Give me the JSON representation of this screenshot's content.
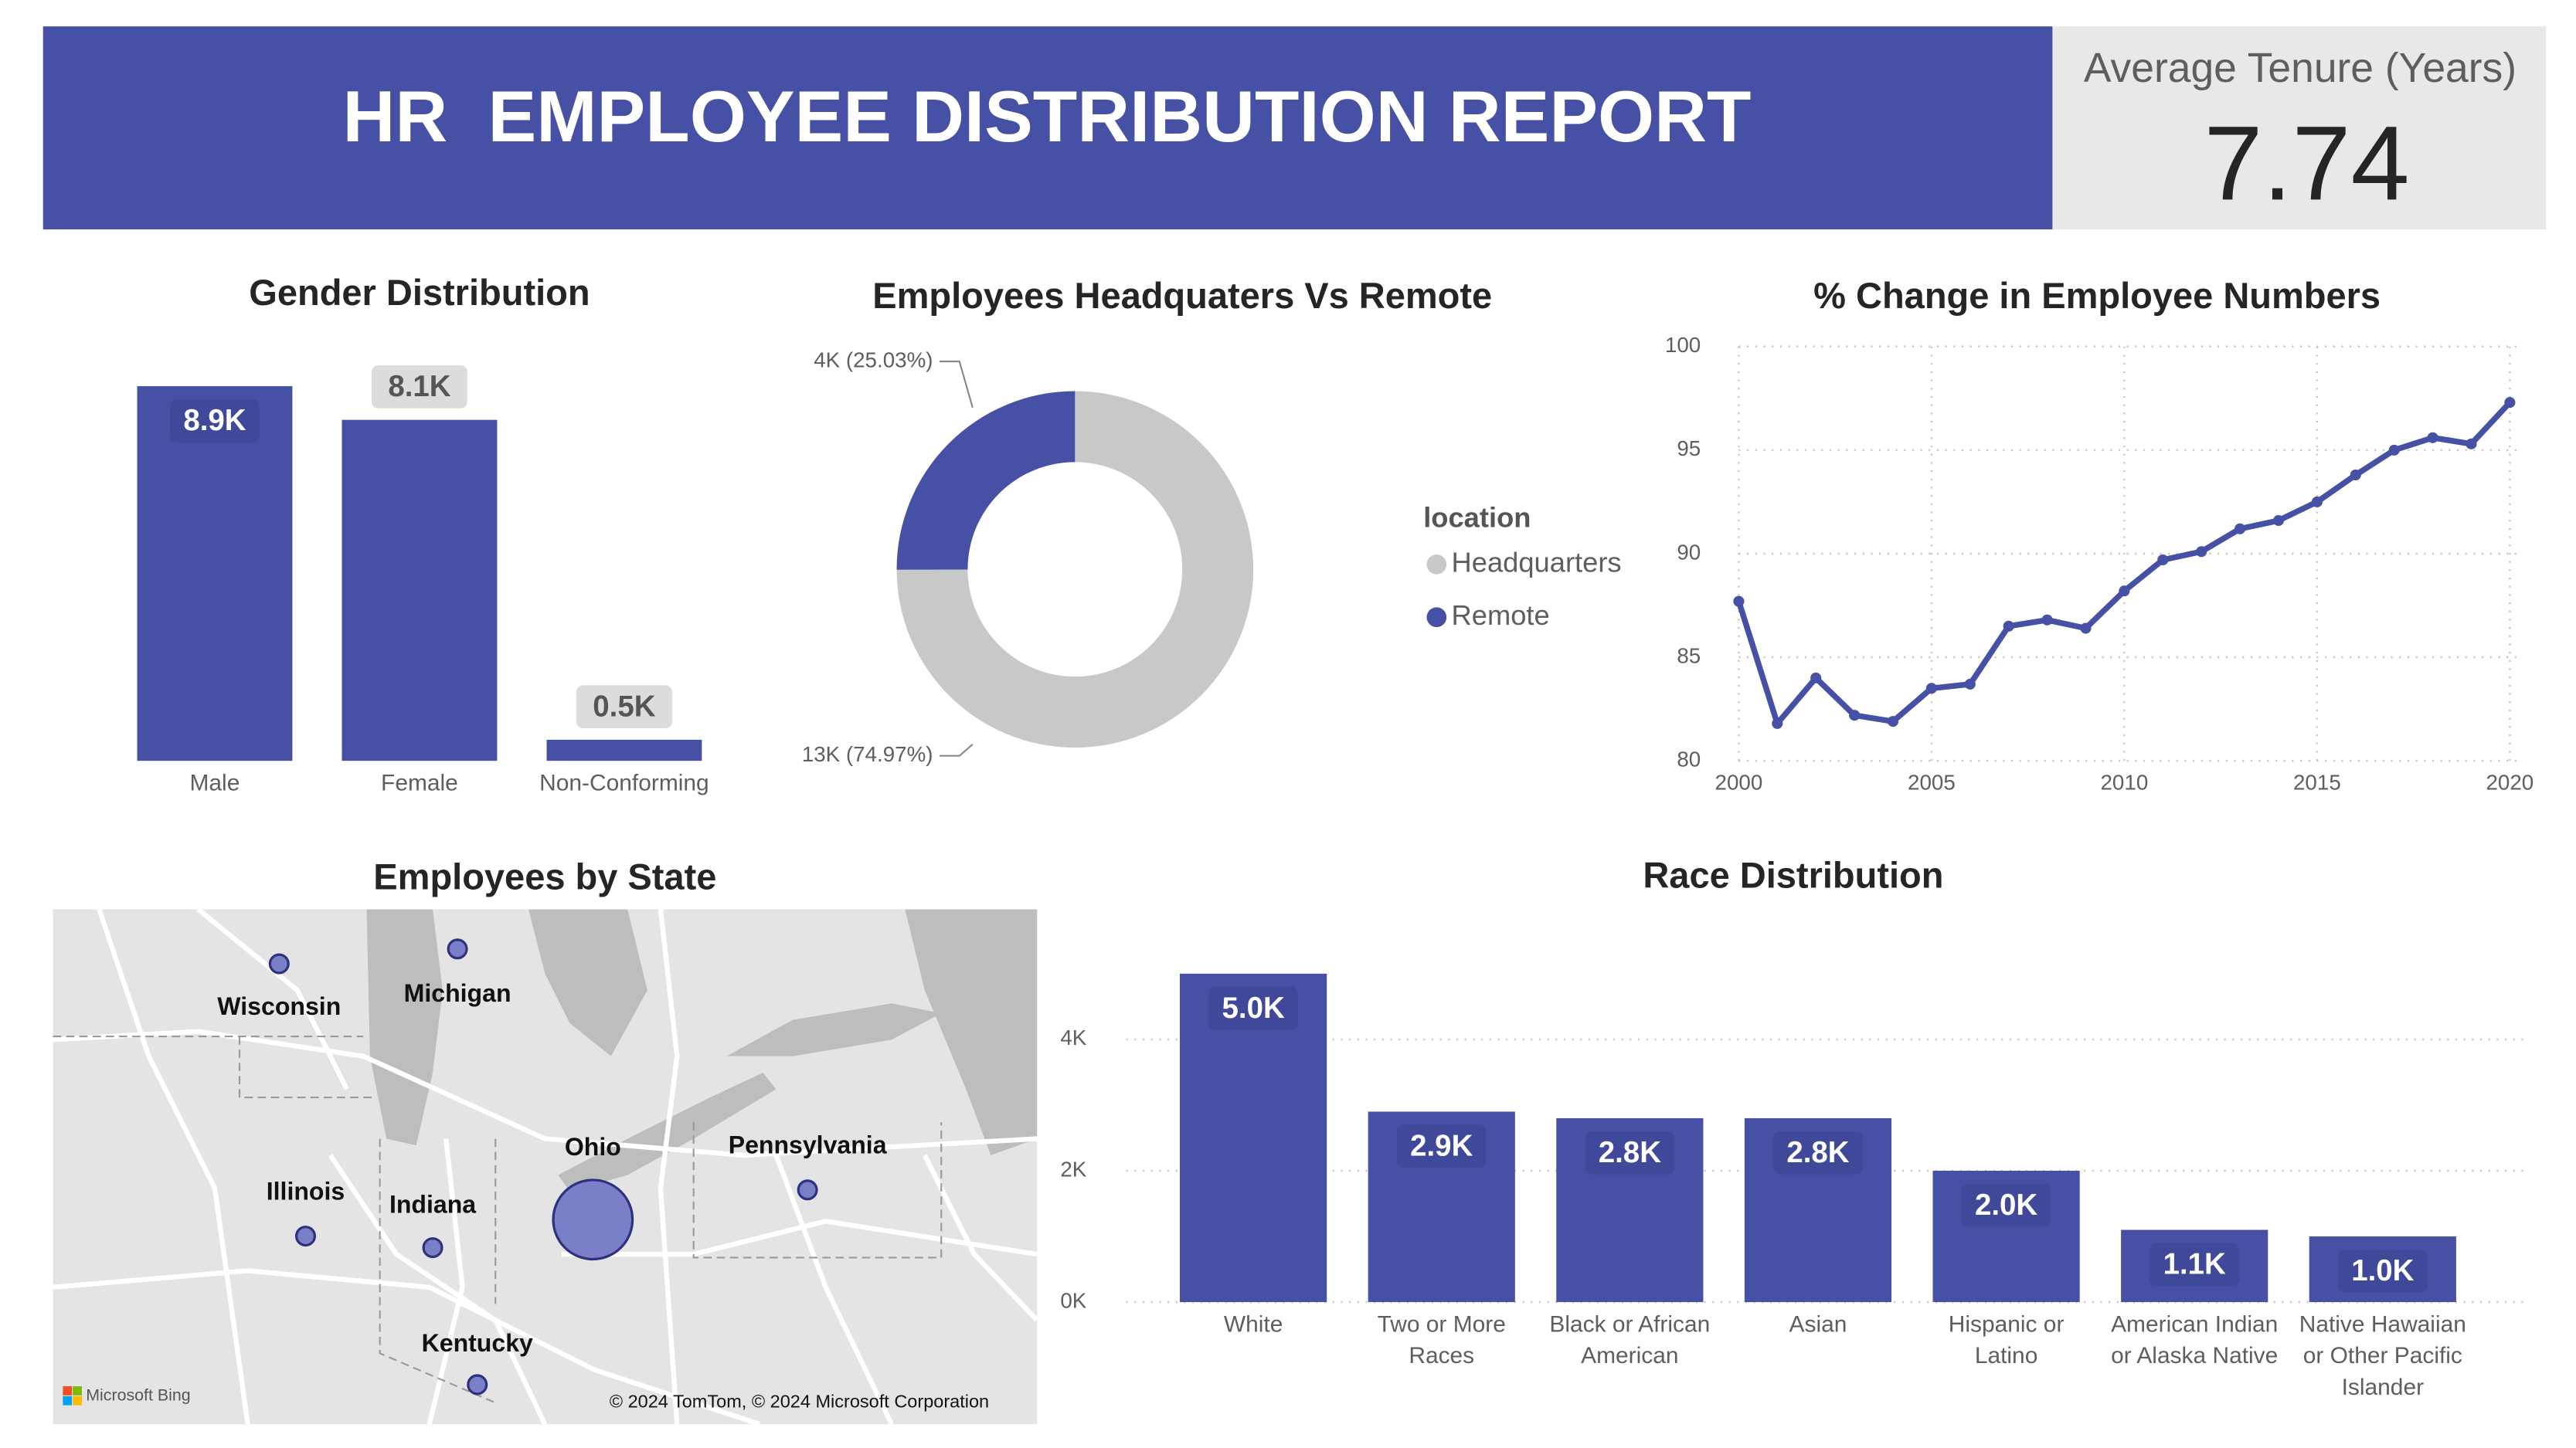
{
  "header": {
    "title": "HR  EMPLOYEE DISTRIBUTION REPORT"
  },
  "kpi": {
    "label": "Average Tenure (Years)",
    "value": 7.74
  },
  "chart_data": [
    {
      "type": "bar",
      "title": "Gender Distribution",
      "categories": [
        "Male",
        "Female",
        "Non-Conforming"
      ],
      "values": [
        8900,
        8100,
        500
      ],
      "value_labels": [
        "8.9K",
        "8.1K",
        "0.5K"
      ],
      "color": "#4650a4"
    },
    {
      "type": "pie",
      "title": "Employees Headquaters Vs Remote",
      "donut": true,
      "categories": [
        "Headquarters",
        "Remote"
      ],
      "values": [
        74.97,
        25.03
      ],
      "value_labels": [
        "13K (74.97%)",
        "4K (25.03%)"
      ],
      "colors": [
        "#c8c8c8",
        "#4650a4"
      ],
      "legend_title": "location"
    },
    {
      "type": "line",
      "title": "% Change in Employee Numbers",
      "x": [
        2000,
        2001,
        2002,
        2003,
        2004,
        2005,
        2006,
        2007,
        2008,
        2009,
        2010,
        2011,
        2012,
        2013,
        2014,
        2015,
        2016,
        2017,
        2018,
        2019,
        2020
      ],
      "values": [
        87.7,
        81.8,
        84.0,
        82.2,
        81.9,
        83.5,
        83.7,
        86.5,
        86.8,
        86.4,
        88.2,
        89.7,
        90.1,
        91.2,
        91.6,
        92.5,
        93.8,
        95.0,
        95.6,
        95.3,
        97.3
      ],
      "color": "#4650a4",
      "xlim": [
        2000,
        2020
      ],
      "xticks": [
        2000,
        2005,
        2010,
        2015,
        2020
      ],
      "ylim": [
        80,
        100
      ],
      "yticks": [
        80,
        85,
        90,
        95,
        100
      ],
      "grid": true
    },
    {
      "type": "map",
      "title": "Employees by State",
      "locations": [
        "Wisconsin",
        "Michigan",
        "Illinois",
        "Indiana",
        "Ohio",
        "Pennsylvania",
        "Kentucky"
      ],
      "values": [
        700,
        700,
        700,
        700,
        13000,
        700,
        700
      ],
      "color": "#7b7fc8",
      "logo_text": "Microsoft Bing",
      "attribution": "© 2024 TomTom, © 2024 Microsoft Corporation"
    },
    {
      "type": "bar",
      "title": "Race Distribution",
      "categories": [
        "White",
        "Two or More Races",
        "Black or African American",
        "Asian",
        "Hispanic or Latino",
        "American Indian or Alaska Native",
        "Native Hawaiian or Other Pacific Islander"
      ],
      "values": [
        5000,
        2900,
        2800,
        2800,
        2000,
        1100,
        1000
      ],
      "value_labels": [
        "5.0K",
        "2.9K",
        "2.8K",
        "2.8K",
        "2.0K",
        "1.1K",
        "1.0K"
      ],
      "color": "#4650a4",
      "ylim": [
        0,
        5000
      ],
      "yticks": [
        {
          "value": 0,
          "label": "0K"
        },
        {
          "value": 2000,
          "label": "2K"
        },
        {
          "value": 4000,
          "label": "4K"
        }
      ],
      "grid": true
    }
  ]
}
